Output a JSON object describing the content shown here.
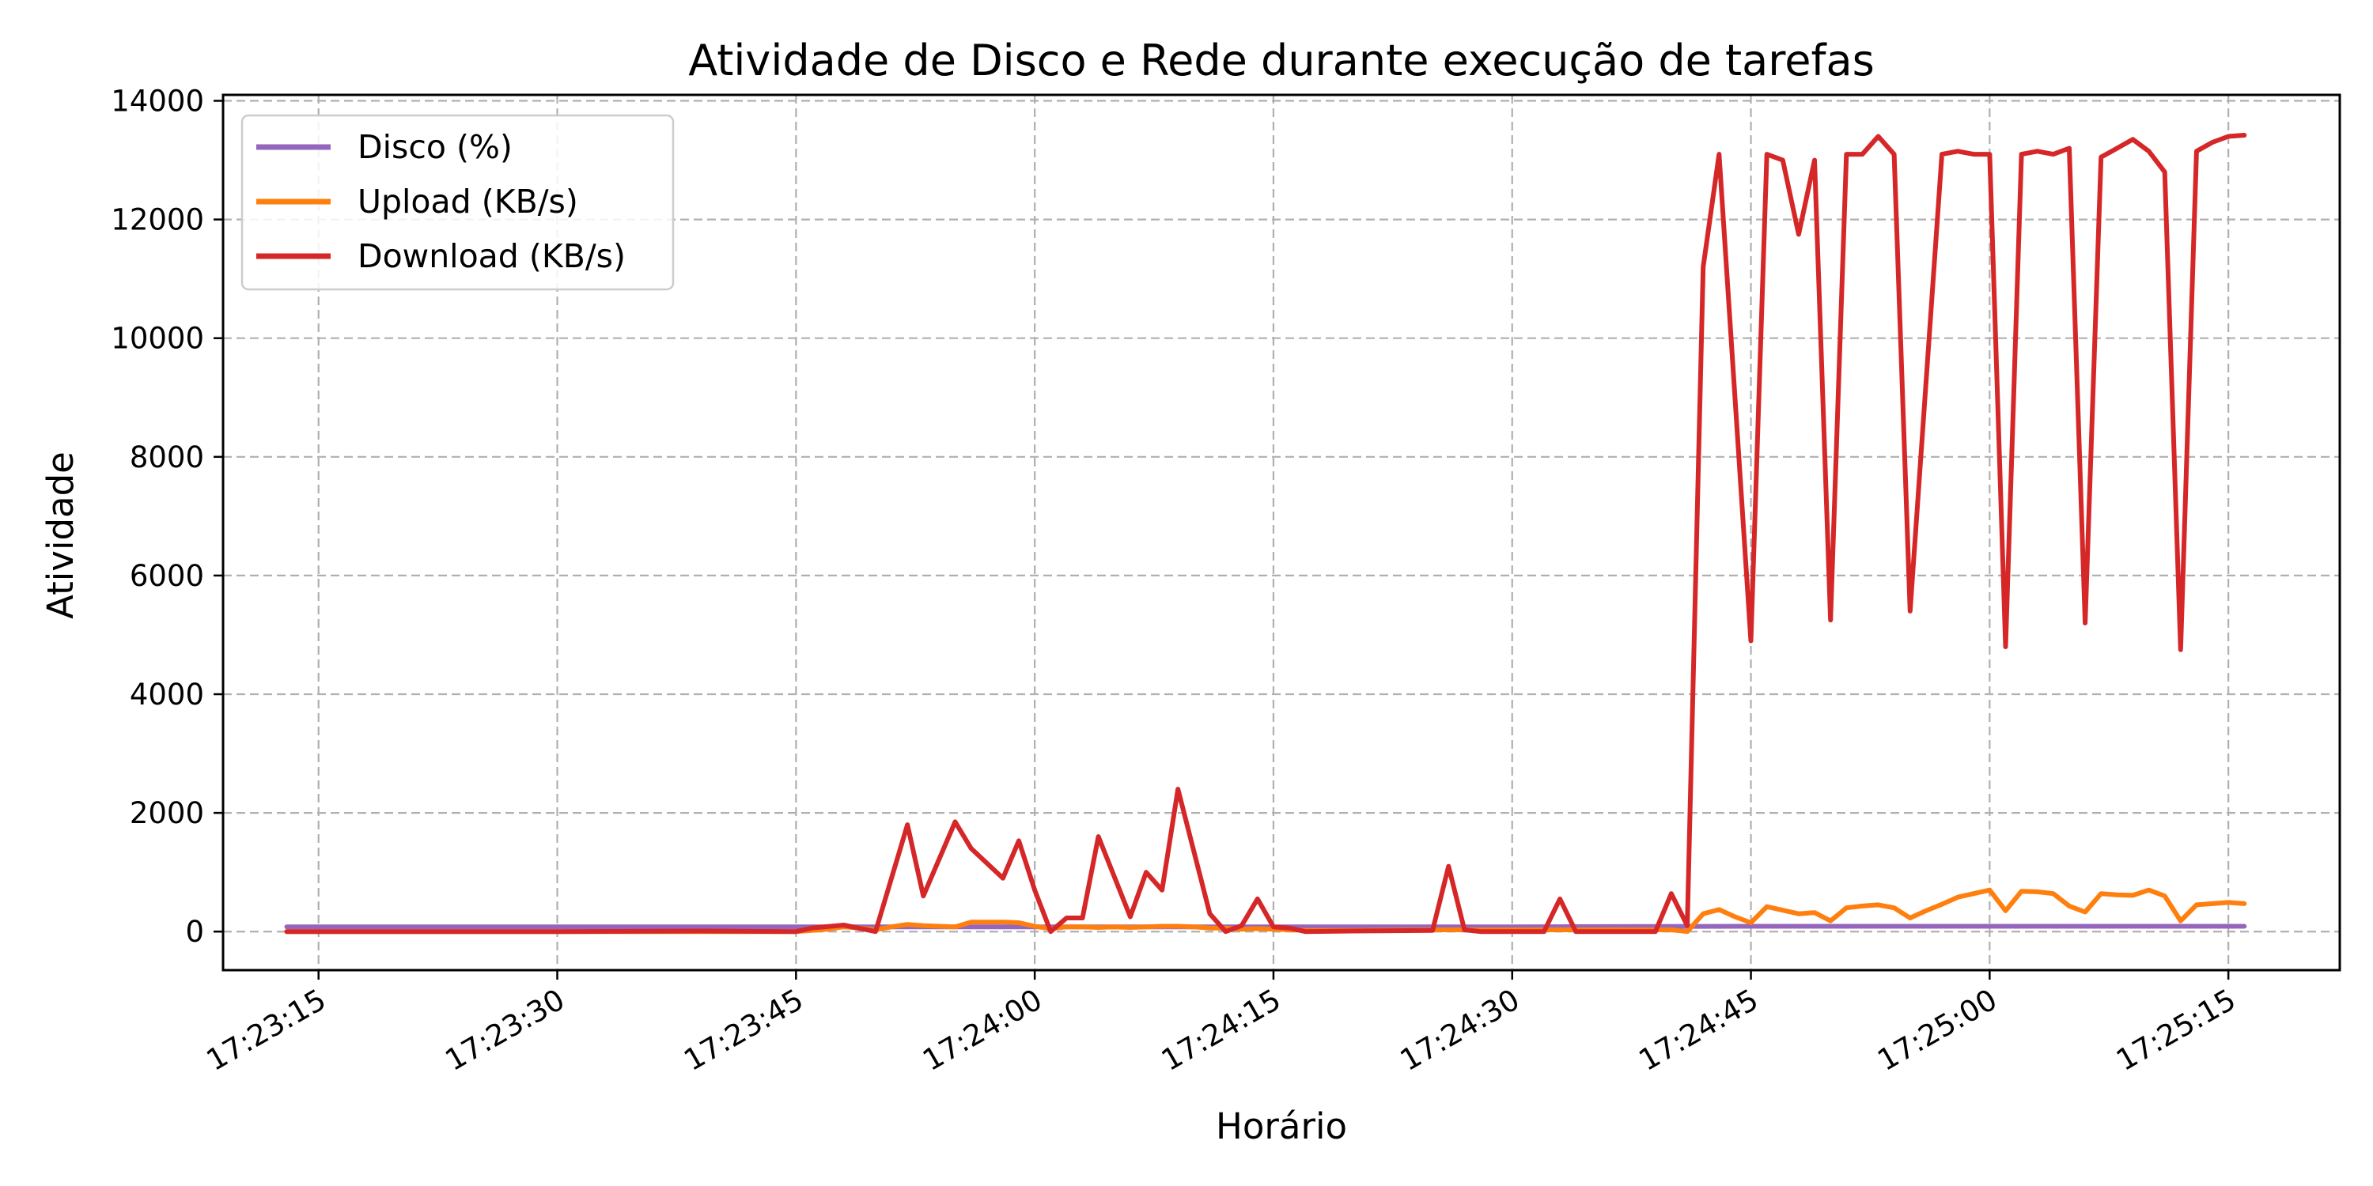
{
  "chart_data": {
    "type": "line",
    "title": "Atividade de Disco e Rede durante execução de tarefas",
    "xlabel": "Horário",
    "ylabel": "Atividade",
    "x_range": [
      "17:23:09",
      "17:25:22"
    ],
    "ylim": [
      -650,
      14100
    ],
    "y_ticks": [
      0,
      2000,
      4000,
      6000,
      8000,
      10000,
      12000,
      14000
    ],
    "y_tick_labels": [
      "0",
      "2000",
      "4000",
      "6000",
      "8000",
      "10000",
      "12000",
      "14000"
    ],
    "x_ticks": [
      "17:23:15",
      "17:23:30",
      "17:23:45",
      "17:24:00",
      "17:24:15",
      "17:24:30",
      "17:24:45",
      "17:25:00",
      "17:25:15"
    ],
    "x_tick_labels": [
      "17:23:15",
      "17:23:30",
      "17:23:45",
      "17:24:00",
      "17:24:15",
      "17:24:30",
      "17:24:45",
      "17:25:00",
      "17:25:15"
    ],
    "grid": true,
    "legend_position": "top-left",
    "series": [
      {
        "name": "Disco (%)",
        "color": "#9467bd",
        "points": [
          [
            "17:23:13",
            80
          ],
          [
            "17:23:45",
            80
          ],
          [
            "17:24:00",
            80
          ],
          [
            "17:24:30",
            80
          ],
          [
            "17:24:45",
            90
          ],
          [
            "17:25:00",
            90
          ],
          [
            "17:25:16",
            90
          ]
        ]
      },
      {
        "name": "Upload (KB/s)",
        "color": "#ff7f0e",
        "points": [
          [
            "17:23:13",
            0
          ],
          [
            "17:23:45",
            0
          ],
          [
            "17:23:47",
            40
          ],
          [
            "17:23:48",
            80
          ],
          [
            "17:23:49",
            60
          ],
          [
            "17:23:50",
            30
          ],
          [
            "17:23:51",
            80
          ],
          [
            "17:23:52",
            120
          ],
          [
            "17:23:53",
            100
          ],
          [
            "17:23:54",
            90
          ],
          [
            "17:23:55",
            80
          ],
          [
            "17:23:56",
            160
          ],
          [
            "17:23:57",
            160
          ],
          [
            "17:23:58",
            160
          ],
          [
            "17:23:59",
            150
          ],
          [
            "17:24:00",
            90
          ],
          [
            "17:24:01",
            50
          ],
          [
            "17:24:02",
            80
          ],
          [
            "17:24:03",
            80
          ],
          [
            "17:24:04",
            70
          ],
          [
            "17:24:05",
            80
          ],
          [
            "17:24:06",
            70
          ],
          [
            "17:24:07",
            80
          ],
          [
            "17:24:08",
            90
          ],
          [
            "17:24:09",
            90
          ],
          [
            "17:24:10",
            80
          ],
          [
            "17:24:11",
            60
          ],
          [
            "17:24:12",
            60
          ],
          [
            "17:24:13",
            40
          ],
          [
            "17:24:14",
            50
          ],
          [
            "17:24:15",
            40
          ],
          [
            "17:24:17",
            20
          ],
          [
            "17:24:20",
            20
          ],
          [
            "17:24:25",
            30
          ],
          [
            "17:24:30",
            30
          ],
          [
            "17:24:35",
            30
          ],
          [
            "17:24:40",
            30
          ],
          [
            "17:24:41",
            0
          ],
          [
            "17:24:42",
            300
          ],
          [
            "17:24:43",
            370
          ],
          [
            "17:24:44",
            250
          ],
          [
            "17:24:45",
            150
          ],
          [
            "17:24:46",
            420
          ],
          [
            "17:24:47",
            360
          ],
          [
            "17:24:48",
            300
          ],
          [
            "17:24:49",
            320
          ],
          [
            "17:24:50",
            180
          ],
          [
            "17:24:51",
            400
          ],
          [
            "17:24:52",
            430
          ],
          [
            "17:24:53",
            450
          ],
          [
            "17:24:54",
            400
          ],
          [
            "17:24:55",
            230
          ],
          [
            "17:24:56",
            350
          ],
          [
            "17:24:57",
            460
          ],
          [
            "17:24:58",
            580
          ],
          [
            "17:24:59",
            640
          ],
          [
            "17:25:00",
            700
          ],
          [
            "17:25:01",
            350
          ],
          [
            "17:25:02",
            680
          ],
          [
            "17:25:03",
            670
          ],
          [
            "17:25:04",
            640
          ],
          [
            "17:25:05",
            430
          ],
          [
            "17:25:06",
            330
          ],
          [
            "17:25:07",
            640
          ],
          [
            "17:25:08",
            620
          ],
          [
            "17:25:09",
            610
          ],
          [
            "17:25:10",
            700
          ],
          [
            "17:25:11",
            600
          ],
          [
            "17:25:12",
            180
          ],
          [
            "17:25:13",
            450
          ],
          [
            "17:25:14",
            470
          ],
          [
            "17:25:15",
            490
          ],
          [
            "17:25:16",
            470
          ]
        ]
      },
      {
        "name": "Download (KB/s)",
        "color": "#d62728",
        "points": [
          [
            "17:23:13",
            0
          ],
          [
            "17:23:20",
            0
          ],
          [
            "17:23:30",
            0
          ],
          [
            "17:23:39",
            10
          ],
          [
            "17:23:45",
            0
          ],
          [
            "17:23:46",
            60
          ],
          [
            "17:23:48",
            110
          ],
          [
            "17:23:50",
            0
          ],
          [
            "17:23:52",
            1800
          ],
          [
            "17:23:53",
            600
          ],
          [
            "17:23:55",
            1850
          ],
          [
            "17:23:56",
            1400
          ],
          [
            "17:23:58",
            900
          ],
          [
            "17:23:59",
            1530
          ],
          [
            "17:24:00",
            700
          ],
          [
            "17:24:01",
            0
          ],
          [
            "17:24:02",
            230
          ],
          [
            "17:24:03",
            230
          ],
          [
            "17:24:04",
            1600
          ],
          [
            "17:24:06",
            250
          ],
          [
            "17:24:07",
            1000
          ],
          [
            "17:24:08",
            700
          ],
          [
            "17:24:09",
            2400
          ],
          [
            "17:24:11",
            300
          ],
          [
            "17:24:12",
            0
          ],
          [
            "17:24:13",
            100
          ],
          [
            "17:24:14",
            550
          ],
          [
            "17:24:15",
            80
          ],
          [
            "17:24:16",
            60
          ],
          [
            "17:24:17",
            0
          ],
          [
            "17:24:20",
            10
          ],
          [
            "17:24:25",
            20
          ],
          [
            "17:24:26",
            1100
          ],
          [
            "17:24:27",
            30
          ],
          [
            "17:24:28",
            0
          ],
          [
            "17:24:32",
            0
          ],
          [
            "17:24:33",
            550
          ],
          [
            "17:24:34",
            0
          ],
          [
            "17:24:39",
            0
          ],
          [
            "17:24:40",
            640
          ],
          [
            "17:24:41",
            100
          ],
          [
            "17:24:42",
            11200
          ],
          [
            "17:24:43",
            13100
          ],
          [
            "17:24:45",
            4900
          ],
          [
            "17:24:46",
            13100
          ],
          [
            "17:24:47",
            13000
          ],
          [
            "17:24:48",
            11750
          ],
          [
            "17:24:49",
            13000
          ],
          [
            "17:24:50",
            5250
          ],
          [
            "17:24:51",
            13100
          ],
          [
            "17:24:52",
            13100
          ],
          [
            "17:24:53",
            13400
          ],
          [
            "17:24:54",
            13100
          ],
          [
            "17:24:55",
            5400
          ],
          [
            "17:24:57",
            13100
          ],
          [
            "17:24:58",
            13150
          ],
          [
            "17:24:59",
            13100
          ],
          [
            "17:25:00",
            13100
          ],
          [
            "17:25:01",
            4800
          ],
          [
            "17:25:02",
            13100
          ],
          [
            "17:25:03",
            13150
          ],
          [
            "17:25:04",
            13100
          ],
          [
            "17:25:05",
            13200
          ],
          [
            "17:25:06",
            5200
          ],
          [
            "17:25:07",
            13050
          ],
          [
            "17:25:09",
            13350
          ],
          [
            "17:25:10",
            13150
          ],
          [
            "17:25:11",
            12800
          ],
          [
            "17:25:12",
            4750
          ],
          [
            "17:25:13",
            13150
          ],
          [
            "17:25:14",
            13300
          ],
          [
            "17:25:15",
            13400
          ],
          [
            "17:25:16",
            13420
          ]
        ]
      }
    ]
  }
}
